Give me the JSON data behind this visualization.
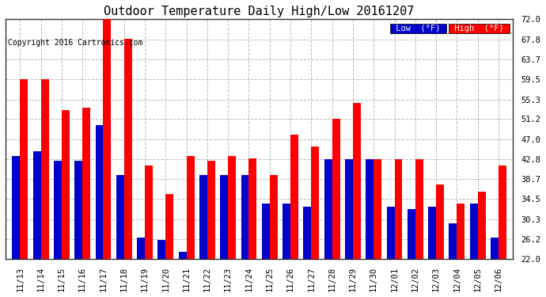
{
  "title": "Outdoor Temperature Daily High/Low 20161207",
  "copyright": "Copyright 2016 Cartronics.com",
  "categories": [
    "11/13",
    "11/14",
    "11/15",
    "11/16",
    "11/17",
    "11/18",
    "11/19",
    "11/20",
    "11/21",
    "11/22",
    "11/23",
    "11/24",
    "11/25",
    "11/26",
    "11/27",
    "11/28",
    "11/29",
    "11/30",
    "12/01",
    "12/02",
    "12/03",
    "12/04",
    "12/05",
    "12/06"
  ],
  "high_values": [
    59.5,
    59.5,
    53.0,
    53.5,
    72.0,
    68.0,
    41.5,
    35.5,
    43.5,
    42.5,
    43.5,
    43.0,
    39.5,
    48.0,
    45.5,
    51.2,
    54.5,
    42.8,
    42.8,
    42.8,
    37.5,
    33.5,
    36.0,
    41.5
  ],
  "low_values": [
    43.5,
    44.5,
    42.5,
    42.5,
    50.0,
    39.5,
    26.5,
    26.0,
    23.5,
    39.5,
    39.5,
    39.5,
    33.5,
    33.5,
    33.0,
    42.8,
    42.8,
    42.8,
    33.0,
    32.5,
    33.0,
    29.5,
    33.5,
    26.5
  ],
  "high_color": "#ff0000",
  "low_color": "#0000cc",
  "bg_color": "#ffffff",
  "grid_color": "#bbbbbb",
  "ylim": [
    22.0,
    72.0
  ],
  "yticks": [
    22.0,
    26.2,
    30.3,
    34.5,
    38.7,
    42.8,
    47.0,
    51.2,
    55.3,
    59.5,
    63.7,
    67.8,
    72.0
  ],
  "bar_width": 0.38,
  "title_fontsize": 11,
  "tick_fontsize": 7.5,
  "copyright_fontsize": 7,
  "legend_low_label": "Low  (°F)",
  "legend_high_label": "High  (°F)",
  "legend_low_bg": "#0000cc",
  "legend_high_bg": "#ff0000"
}
